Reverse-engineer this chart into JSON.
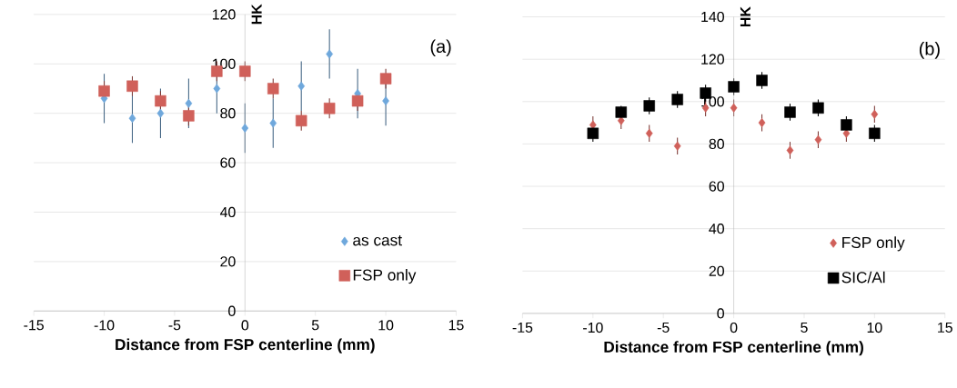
{
  "chart_data": [
    {
      "type": "scatter",
      "xlabel": "Distance from FSP centerline (mm)",
      "ylabel": "HK",
      "annotations": [
        "(a)"
      ],
      "x": [
        -10,
        -8,
        -6,
        -4,
        -2,
        0,
        2,
        4,
        6,
        8,
        10
      ],
      "series": [
        {
          "name": "as cast",
          "color": "#6fa8dc",
          "marker": "diamond",
          "values": [
            86,
            78,
            80,
            84,
            90,
            74,
            76,
            91,
            104,
            88,
            85
          ],
          "errors": [
            10,
            10,
            10,
            10,
            10,
            10,
            10,
            10,
            10,
            10,
            10
          ]
        },
        {
          "name": "FSP only",
          "color": "#d0605a",
          "marker": "square",
          "values": [
            89,
            91,
            85,
            79,
            97,
            97,
            90,
            77,
            82,
            85,
            94
          ],
          "errors": [
            4,
            4,
            4,
            4,
            4,
            4,
            4,
            4,
            4,
            4,
            4
          ]
        }
      ],
      "xlim": [
        -15,
        15
      ],
      "xticks": [
        -15,
        -10,
        -5,
        0,
        5,
        10,
        15
      ],
      "ylim": [
        0,
        120
      ],
      "yticks": [
        0,
        20,
        40,
        60,
        80,
        100,
        120
      ],
      "grid": "y",
      "legend": "bottom right"
    },
    {
      "type": "scatter",
      "xlabel": "Distance from FSP centerline (mm)",
      "ylabel": "HK",
      "annotations": [
        "(b)"
      ],
      "x": [
        -10,
        -8,
        -6,
        -4,
        -2,
        0,
        2,
        4,
        6,
        8,
        10
      ],
      "series": [
        {
          "name": "FSP only",
          "color": "#d0605a",
          "marker": "diamond",
          "values": [
            89,
            91,
            85,
            79,
            97,
            97,
            90,
            77,
            82,
            85,
            94
          ],
          "errors": [
            4,
            4,
            4,
            4,
            4,
            4,
            4,
            4,
            4,
            4,
            4
          ]
        },
        {
          "name": "SIC/Al",
          "color": "#000000",
          "marker": "square",
          "values": [
            85,
            95,
            98,
            101,
            104,
            107,
            110,
            95,
            97,
            89,
            85
          ],
          "errors": [
            4,
            3,
            4,
            4,
            4,
            4,
            4,
            4,
            4,
            4,
            4
          ]
        }
      ],
      "xlim": [
        -15,
        15
      ],
      "xticks": [
        -15,
        -10,
        -5,
        0,
        5,
        10,
        15
      ],
      "ylim": [
        0,
        140
      ],
      "yticks": [
        0,
        20,
        40,
        60,
        80,
        100,
        120,
        140
      ],
      "grid": "y",
      "legend": "bottom right"
    }
  ]
}
